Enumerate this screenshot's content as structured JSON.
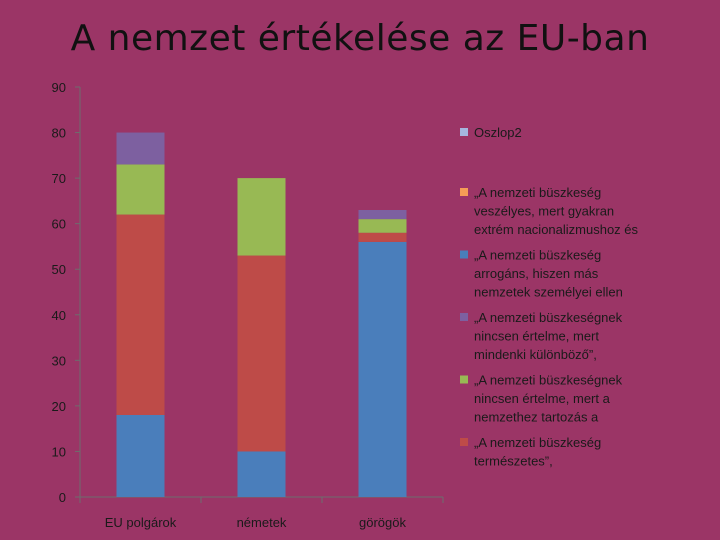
{
  "slide": {
    "title": "A nemzet értékelése az EU-ban"
  },
  "chart_data": {
    "type": "bar",
    "stacked": true,
    "categories": [
      "EU polgárok",
      "németek",
      "görögök"
    ],
    "series": [
      {
        "name": "„A nemzeti büszkeség arrogáns, hiszen más nemzetek személyei ellen",
        "legend_lines": [
          "„A nemzeti büszkeség",
          "arrogáns, hiszen más",
          "nemzetek személyei ellen"
        ],
        "color": "#4a7ebb",
        "values": [
          18,
          10,
          56
        ]
      },
      {
        "name": "„A nemzeti büszkeség természetes”,",
        "legend_lines": [
          "„A nemzeti büszkeség",
          "természetes”,"
        ],
        "color": "#be4b48",
        "values": [
          44,
          43,
          2
        ]
      },
      {
        "name": "„A nemzeti büszkeségnek nincsen értelme, mert a nemzethez tartozás a",
        "legend_lines": [
          "„A nemzeti büszkeségnek",
          "nincsen értelme, mert a",
          "nemzethez tartozás a"
        ],
        "color": "#98b954",
        "values": [
          11,
          17,
          3
        ]
      },
      {
        "name": "„A nemzeti büszkeségnek nincsen értelme, mert mindenki különböző”,",
        "legend_lines": [
          "„A nemzeti büszkeségnek",
          "nincsen értelme, mert",
          "mindenki különböző”,"
        ],
        "color": "#7d60a0",
        "values": [
          7,
          0,
          2
        ]
      },
      {
        "name": "„A nemzeti büszkeség veszélyes, mert gyakran extrém nacionalizmushoz és",
        "legend_lines": [
          "„A nemzeti büszkeség",
          "veszélyes, mert gyakran",
          "extrém nacionalizmushoz és"
        ],
        "color": "#f59d56",
        "values": [
          0,
          0,
          0
        ]
      },
      {
        "name": "Oszlop2",
        "legend_lines": [
          "Oszlop2"
        ],
        "color": "#a5b6df",
        "values": [
          0,
          0,
          0
        ]
      }
    ],
    "legend_order": [
      5,
      4,
      0,
      3,
      2,
      1
    ],
    "yticks": [
      0,
      10,
      20,
      30,
      40,
      50,
      60,
      70,
      80,
      90
    ],
    "ylim": [
      0,
      90
    ],
    "grid": false,
    "legend_position": "right"
  }
}
